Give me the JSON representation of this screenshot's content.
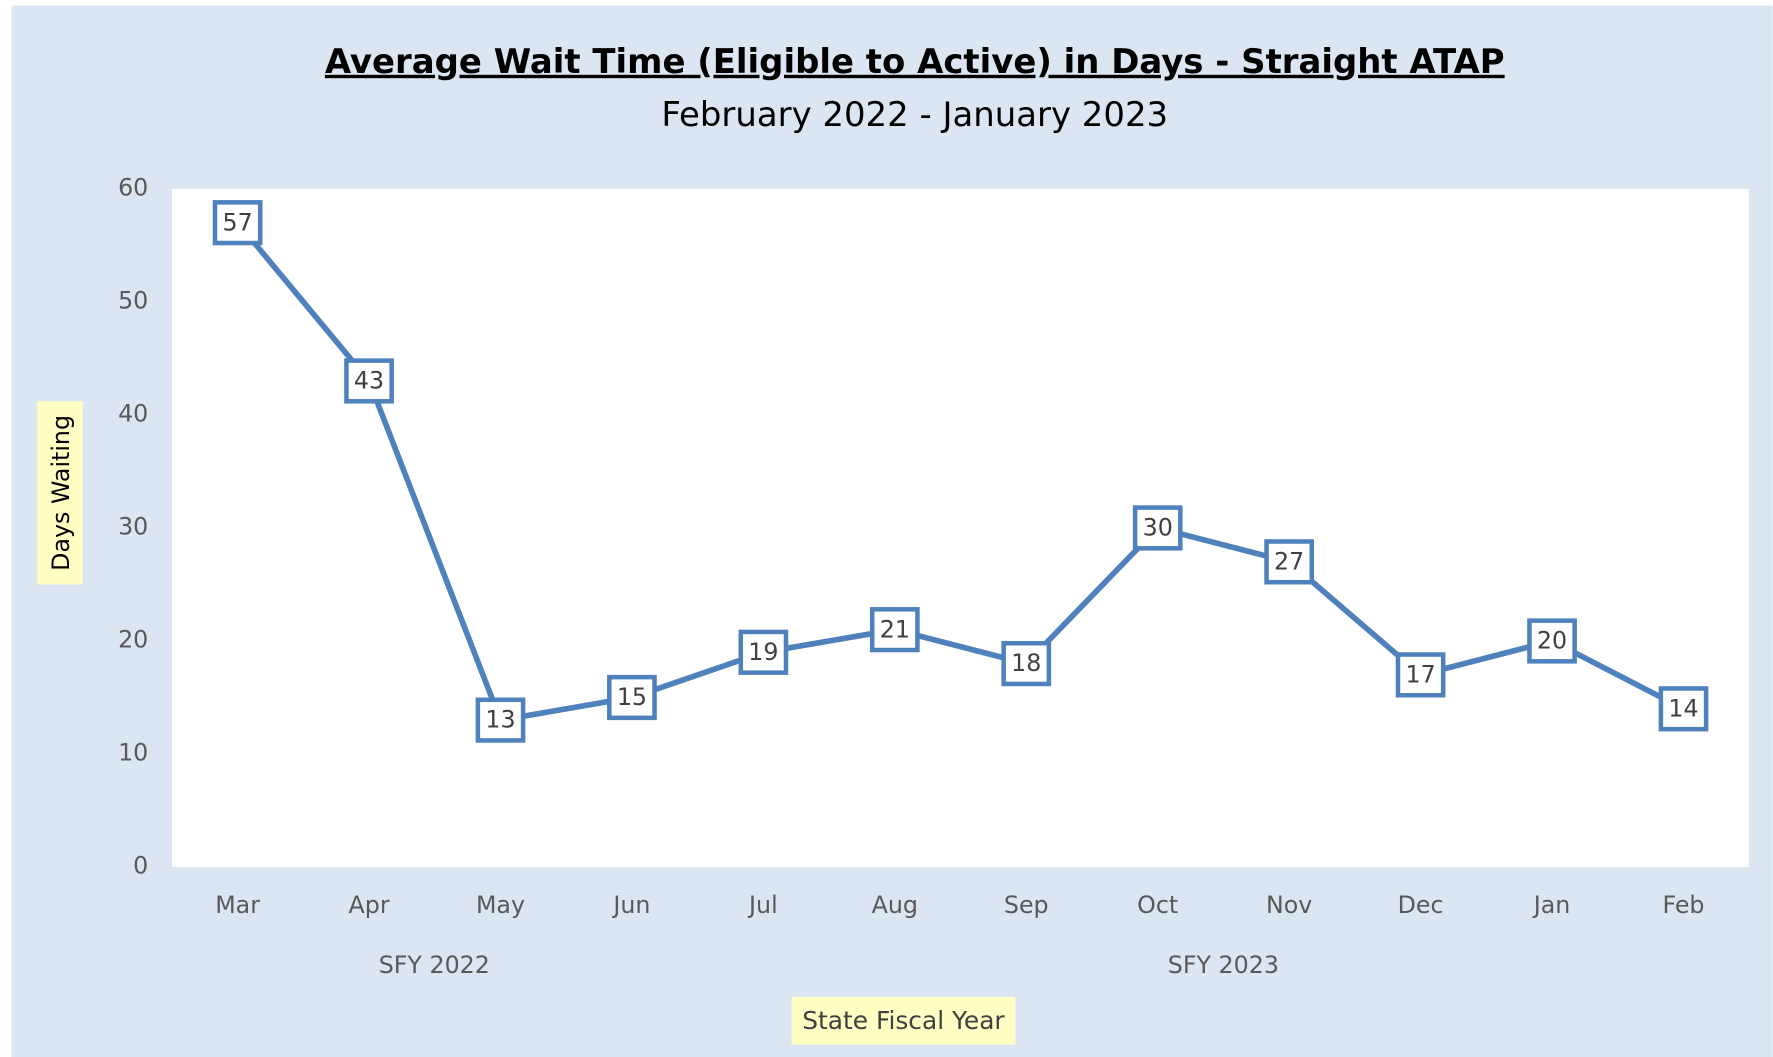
{
  "chart_data": {
    "type": "line",
    "title": "Average Wait Time (Eligible to Active) in Days - Straight ATAP",
    "subtitle": "February 2022 - January 2023",
    "y_label": "Days Waiting",
    "x_label": "State Fiscal Year",
    "x_groups": [
      "SFY 2022",
      "SFY 2023"
    ],
    "categories": [
      "Mar",
      "Apr",
      "May",
      "Jun",
      "Jul",
      "Aug",
      "Sep",
      "Oct",
      "Nov",
      "Dec",
      "Jan",
      "Feb"
    ],
    "series": [
      {
        "name": "Average Wait Time",
        "color": "#4f81bd",
        "values": [
          57,
          43,
          13,
          15,
          19,
          21,
          18,
          30,
          27,
          17,
          20,
          14
        ]
      }
    ],
    "ylim": [
      0,
      60
    ],
    "yticks": [
      0,
      10,
      20,
      30,
      40,
      50,
      60
    ],
    "grid": false
  }
}
